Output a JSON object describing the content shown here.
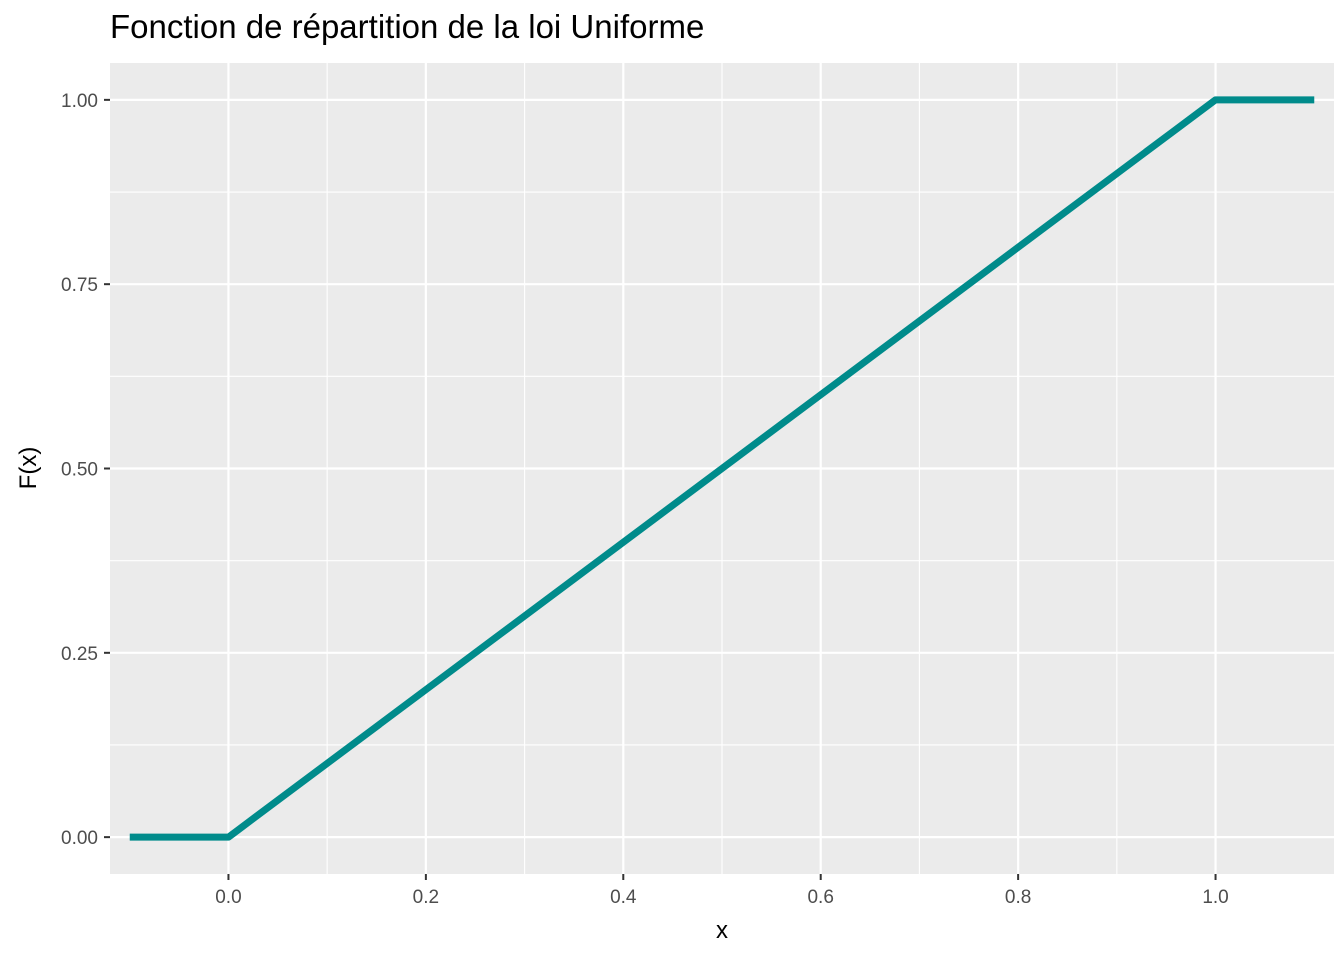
{
  "chart_data": {
    "type": "line",
    "title": "Fonction de répartition de la loi Uniforme",
    "xlabel": "x",
    "ylabel": "F(x)",
    "xlim": [
      -0.12,
      1.12
    ],
    "ylim": [
      -0.05,
      1.05
    ],
    "x_ticks": [
      0.0,
      0.2,
      0.4,
      0.6,
      0.8,
      1.0
    ],
    "x_tick_labels": [
      "0.0",
      "0.2",
      "0.4",
      "0.6",
      "0.8",
      "1.0"
    ],
    "y_ticks": [
      0.0,
      0.25,
      0.5,
      0.75,
      1.0
    ],
    "y_tick_labels": [
      "0.00",
      "0.25",
      "0.50",
      "0.75",
      "1.00"
    ],
    "grid": true,
    "series": [
      {
        "color": "#008b8b",
        "x": [
          -0.1,
          0.0,
          0.01,
          0.99,
          1.0,
          1.1
        ],
        "y": [
          0.0,
          0.0,
          0.01,
          0.99,
          1.0,
          1.0
        ]
      }
    ]
  }
}
